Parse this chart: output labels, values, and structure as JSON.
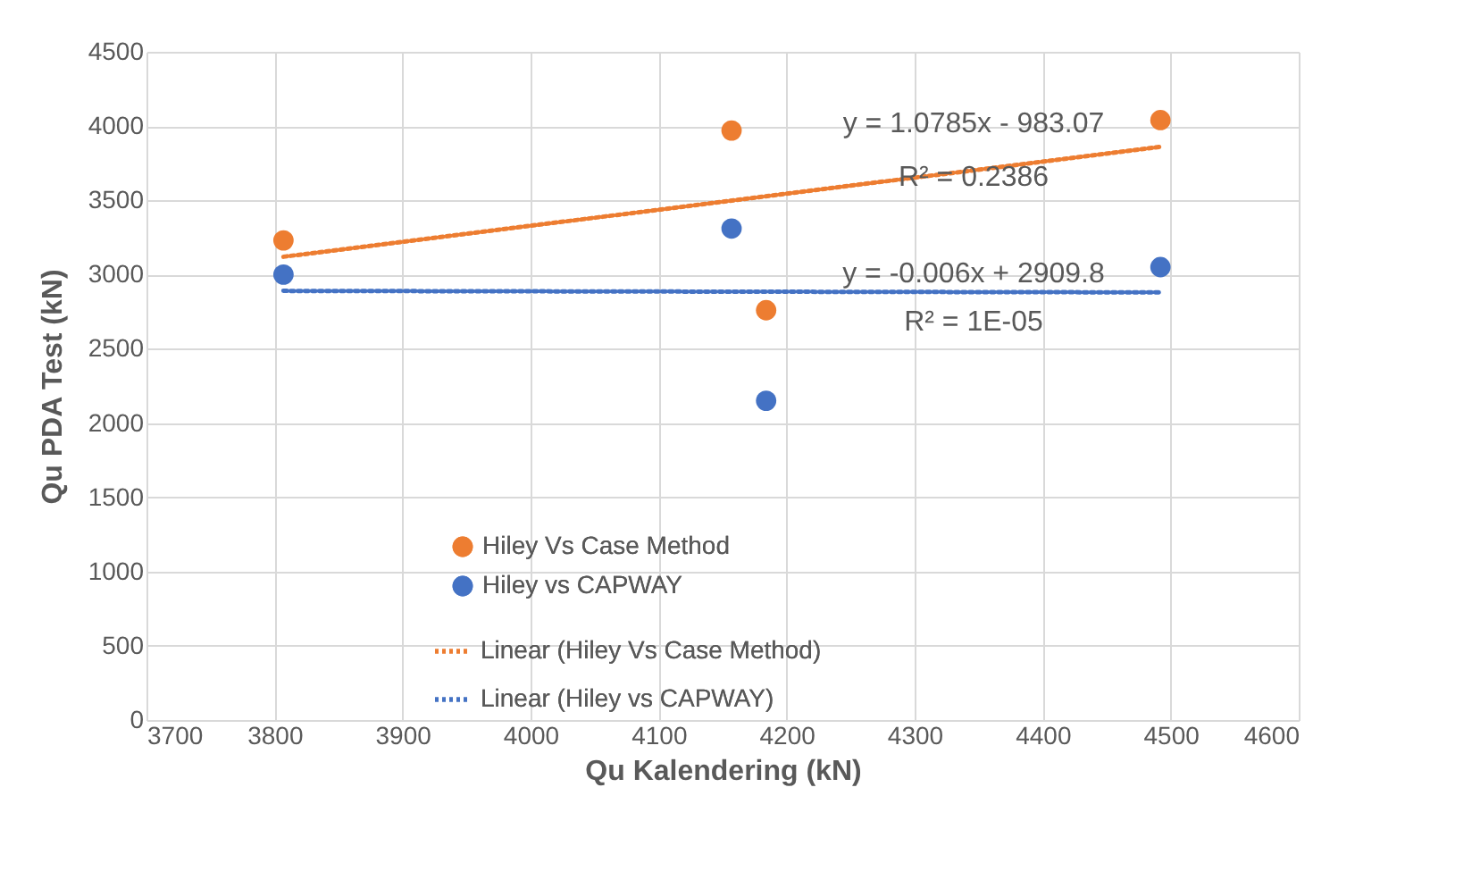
{
  "chart_data": {
    "type": "scatter",
    "xlabel": "Qu Kalendering (kN)",
    "ylabel": "Qu PDA Test (kN)",
    "xlim": [
      3700,
      4600
    ],
    "xticks": [
      3700,
      3800,
      3900,
      4000,
      4100,
      4200,
      4300,
      4400,
      4500,
      4600
    ],
    "ylim": [
      0,
      4500
    ],
    "yticks": [
      0,
      500,
      1000,
      1500,
      2000,
      2500,
      3000,
      3500,
      4000,
      4500
    ],
    "grid": true,
    "legend": "bottom",
    "series": [
      {
        "name": "Hiley Vs Case Method",
        "marker": "circle",
        "color": "#ed7d31",
        "x": [
          3807,
          4157,
          4184,
          4492
        ],
        "values": [
          3230,
          3970,
          2760,
          4040
        ]
      },
      {
        "name": "Hiley vs CAPWAY",
        "marker": "circle",
        "color": "#4472c4",
        "x": [
          3807,
          4157,
          4184,
          4492
        ],
        "values": [
          3000,
          3310,
          2150,
          3050
        ]
      },
      {
        "name": "Linear (Hiley Vs Case Method)",
        "type": "line",
        "line_style": "dotted",
        "marker": "none",
        "color": "#ed7d31",
        "x": [
          3807,
          4492
        ],
        "values": [
          3120,
          3860
        ]
      },
      {
        "name": "Linear (Hiley vs CAPWAY)",
        "type": "line",
        "line_style": "dotted",
        "marker": "none",
        "color": "#4472c4",
        "x": [
          3807,
          4492
        ],
        "values": [
          2890,
          2880
        ]
      }
    ],
    "annotations": [
      "y = 1.0785x - 983.07",
      "R² = 0.2386",
      "y = -0.006x + 2909.8",
      "R² = 1E-05"
    ]
  }
}
